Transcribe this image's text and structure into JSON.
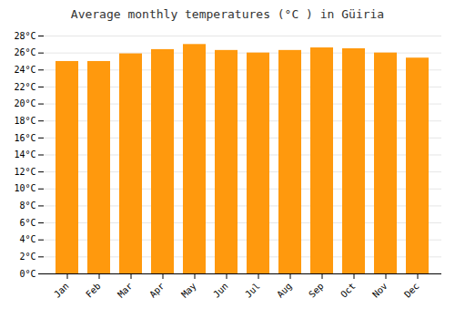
{
  "chart_data": {
    "type": "bar",
    "title": "Average monthly temperatures (°C ) in Güiria",
    "categories": [
      "Jan",
      "Feb",
      "Mar",
      "Apr",
      "May",
      "Jun",
      "Jul",
      "Aug",
      "Sep",
      "Oct",
      "Nov",
      "Dec"
    ],
    "values": [
      25.0,
      25.0,
      25.9,
      26.4,
      27.0,
      26.3,
      26.0,
      26.3,
      26.6,
      26.5,
      26.0,
      25.4
    ],
    "color": "#FF990D",
    "ylim": [
      0,
      28
    ],
    "yticks": [
      {
        "value": 0,
        "label": "0°C"
      },
      {
        "value": 2,
        "label": "2°C"
      },
      {
        "value": 4,
        "label": "4°C"
      },
      {
        "value": 6,
        "label": "6°C"
      },
      {
        "value": 8,
        "label": "8°C"
      },
      {
        "value": 10,
        "label": "10°C"
      },
      {
        "value": 12,
        "label": "12°C"
      },
      {
        "value": 14,
        "label": "14°C"
      },
      {
        "value": 16,
        "label": "16°C"
      },
      {
        "value": 18,
        "label": "18°C"
      },
      {
        "value": 20,
        "label": "20°C"
      },
      {
        "value": 22,
        "label": "22°C"
      },
      {
        "value": 24,
        "label": "24°C"
      },
      {
        "value": 26,
        "label": "26°C"
      },
      {
        "value": 28,
        "label": "28°C"
      }
    ],
    "grid": true
  }
}
